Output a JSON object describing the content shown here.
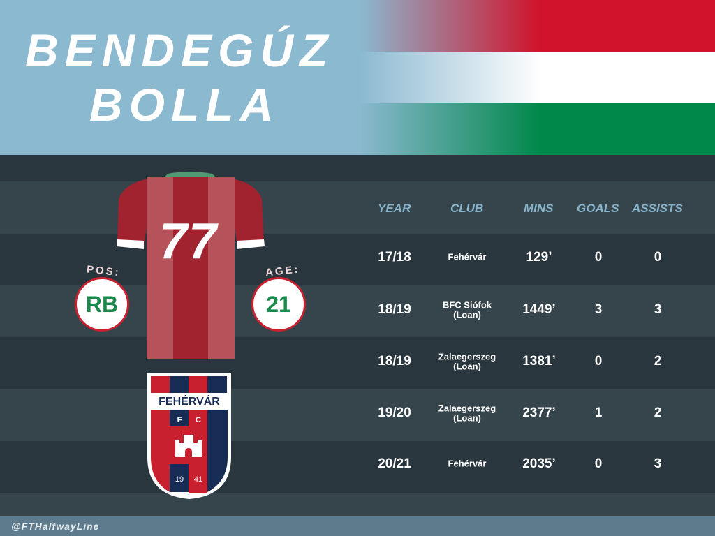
{
  "player": {
    "first_name": "BENDEGÚZ",
    "last_name": "BOLLA",
    "shirt_number": "77",
    "position_label": "POS:",
    "position": "RB",
    "age_label": "AGE:",
    "age": "21"
  },
  "flag": {
    "colors": [
      "#d0122a",
      "#ffffff",
      "#00874a"
    ]
  },
  "club_crest": {
    "name": "FEHÉRVÁR",
    "initials": [
      "F",
      "C"
    ],
    "year": [
      "19",
      "41"
    ],
    "colors": [
      "#c8202f",
      "#162c55"
    ]
  },
  "table": {
    "headers": [
      "YEAR",
      "CLUB",
      "MINS",
      "GOALS",
      "ASSISTS"
    ],
    "rows": [
      {
        "year": "17/18",
        "club": "Fehérvár",
        "club_note": "",
        "mins": "129’",
        "goals": "0",
        "assists": "0"
      },
      {
        "year": "18/19",
        "club": "BFC Siófok",
        "club_note": "(Loan)",
        "mins": "1449’",
        "goals": "3",
        "assists": "3"
      },
      {
        "year": "18/19",
        "club": "Zalaegerszeg",
        "club_note": "(Loan)",
        "mins": "1381’",
        "goals": "0",
        "assists": "2"
      },
      {
        "year": "19/20",
        "club": "Zalaegerszeg",
        "club_note": "(Loan)",
        "mins": "2377’",
        "goals": "1",
        "assists": "2"
      },
      {
        "year": "20/21",
        "club": "Fehérvár",
        "club_note": "",
        "mins": "2035’",
        "goals": "0",
        "assists": "3"
      }
    ]
  },
  "footer": {
    "handle": "@FTHalfwayLine"
  }
}
